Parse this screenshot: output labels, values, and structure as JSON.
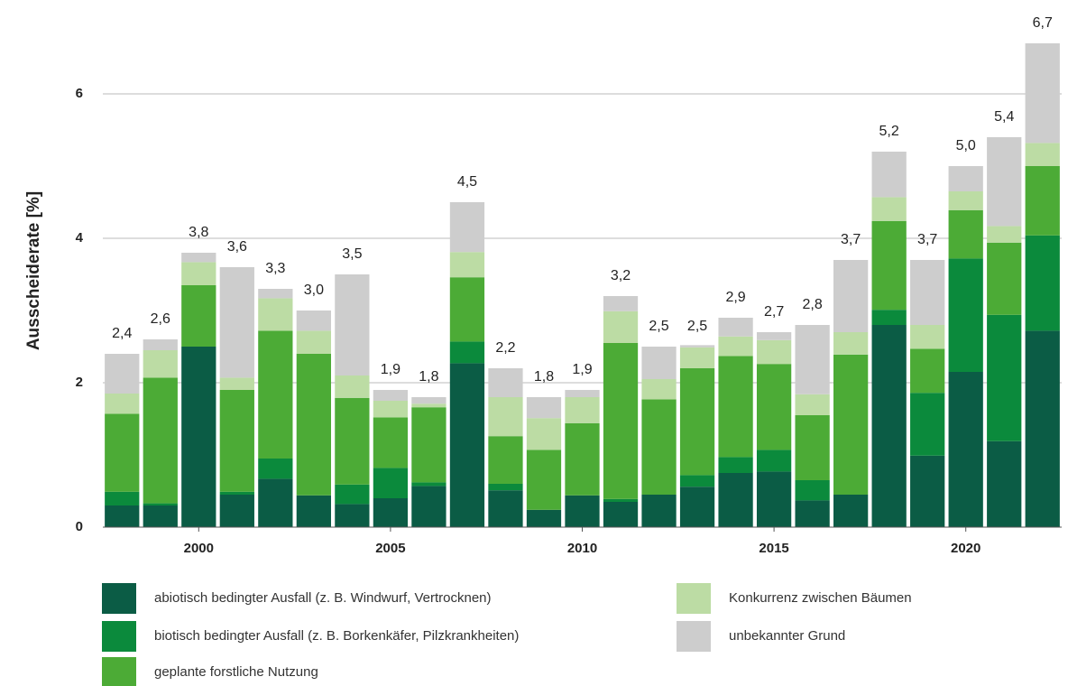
{
  "chart_data": {
    "type": "stacked_bar",
    "ylabel": "Ausscheiderate [%]",
    "x": [
      1998,
      1999,
      2000,
      2001,
      2002,
      2003,
      2004,
      2005,
      2006,
      2007,
      2008,
      2009,
      2010,
      2011,
      2012,
      2013,
      2014,
      2015,
      2016,
      2017,
      2018,
      2019,
      2020,
      2021,
      2022
    ],
    "xlim": [
      1997.5,
      2022.5
    ],
    "xticks": [
      2000,
      2005,
      2010,
      2015,
      2020
    ],
    "ylim": [
      0,
      7
    ],
    "yticks": [
      0,
      2,
      4,
      6
    ],
    "grid": true,
    "series": [
      {
        "name": "abiotisch bedingter Ausfall (z. B. Windwurf, Vertrocknen)",
        "color": "#0b5c45",
        "values": [
          0.3,
          0.3,
          2.5,
          0.45,
          0.67,
          0.44,
          0.32,
          0.4,
          0.57,
          2.27,
          0.51,
          0.24,
          0.44,
          0.35,
          0.45,
          0.56,
          0.75,
          0.77,
          0.37,
          0.45,
          2.8,
          0.99,
          2.15,
          1.19,
          2.72
        ]
      },
      {
        "name": "biotisch bedingter Ausfall (z. B. Borkenkäfer, Pilzkrankheiten)",
        "color": "#0b8a3c",
        "values": [
          0.19,
          0.03,
          0,
          0.04,
          0.28,
          0,
          0.27,
          0.42,
          0.05,
          0.3,
          0.09,
          0,
          0,
          0.04,
          0,
          0.16,
          0.22,
          0.3,
          0.28,
          0,
          0.21,
          0.87,
          1.57,
          1.75,
          1.32
        ]
      },
      {
        "name": "geplante forstliche Nutzung",
        "color": "#4cab36",
        "values": [
          1.08,
          1.74,
          0.85,
          1.41,
          1.77,
          1.96,
          1.2,
          0.7,
          1.04,
          0.89,
          0.66,
          0.83,
          1.0,
          2.16,
          1.32,
          1.48,
          1.4,
          1.19,
          0.9,
          1.94,
          1.23,
          0.61,
          0.67,
          1.0,
          0.96
        ]
      },
      {
        "name": "Konkurrenz zwischen Bäumen",
        "color": "#bcdca4",
        "values": [
          0.28,
          0.38,
          0.32,
          0.17,
          0.45,
          0.32,
          0.31,
          0.23,
          0.05,
          0.35,
          0.54,
          0.44,
          0.36,
          0.44,
          0.28,
          0.29,
          0.27,
          0.33,
          0.29,
          0.31,
          0.33,
          0.33,
          0.26,
          0.23,
          0.32
        ]
      },
      {
        "name": "unbekannter Grund",
        "color": "#cdcdcd",
        "values": [
          0.55,
          0.15,
          0.13,
          1.53,
          0.13,
          0.28,
          1.4,
          0.15,
          0.09,
          0.69,
          0.4,
          0.29,
          0.1,
          0.21,
          0.45,
          0.03,
          0.26,
          0.11,
          0.96,
          1.0,
          0.63,
          0.9,
          0.35,
          1.23,
          1.38
        ]
      }
    ],
    "totals": {
      "values": [
        2.4,
        2.6,
        3.8,
        3.6,
        3.3,
        3.0,
        3.5,
        1.9,
        1.8,
        4.5,
        2.2,
        1.8,
        1.9,
        3.2,
        2.5,
        2.5,
        2.9,
        2.7,
        2.8,
        3.7,
        5.2,
        3.7,
        5.0,
        5.4,
        6.7
      ],
      "value_labels": [
        "2,4",
        "2,6",
        "3,8",
        "3,6",
        "3,3",
        "3,0",
        "3,5",
        "1,9",
        "1,8",
        "4,5",
        "2,2",
        "1,8",
        "1,9",
        "3,2",
        "2,5",
        "2,5",
        "2,9",
        "2,7",
        "2,8",
        "3,7",
        "5,2",
        "3,7",
        "5,0",
        "5,4",
        "6,7"
      ]
    }
  }
}
